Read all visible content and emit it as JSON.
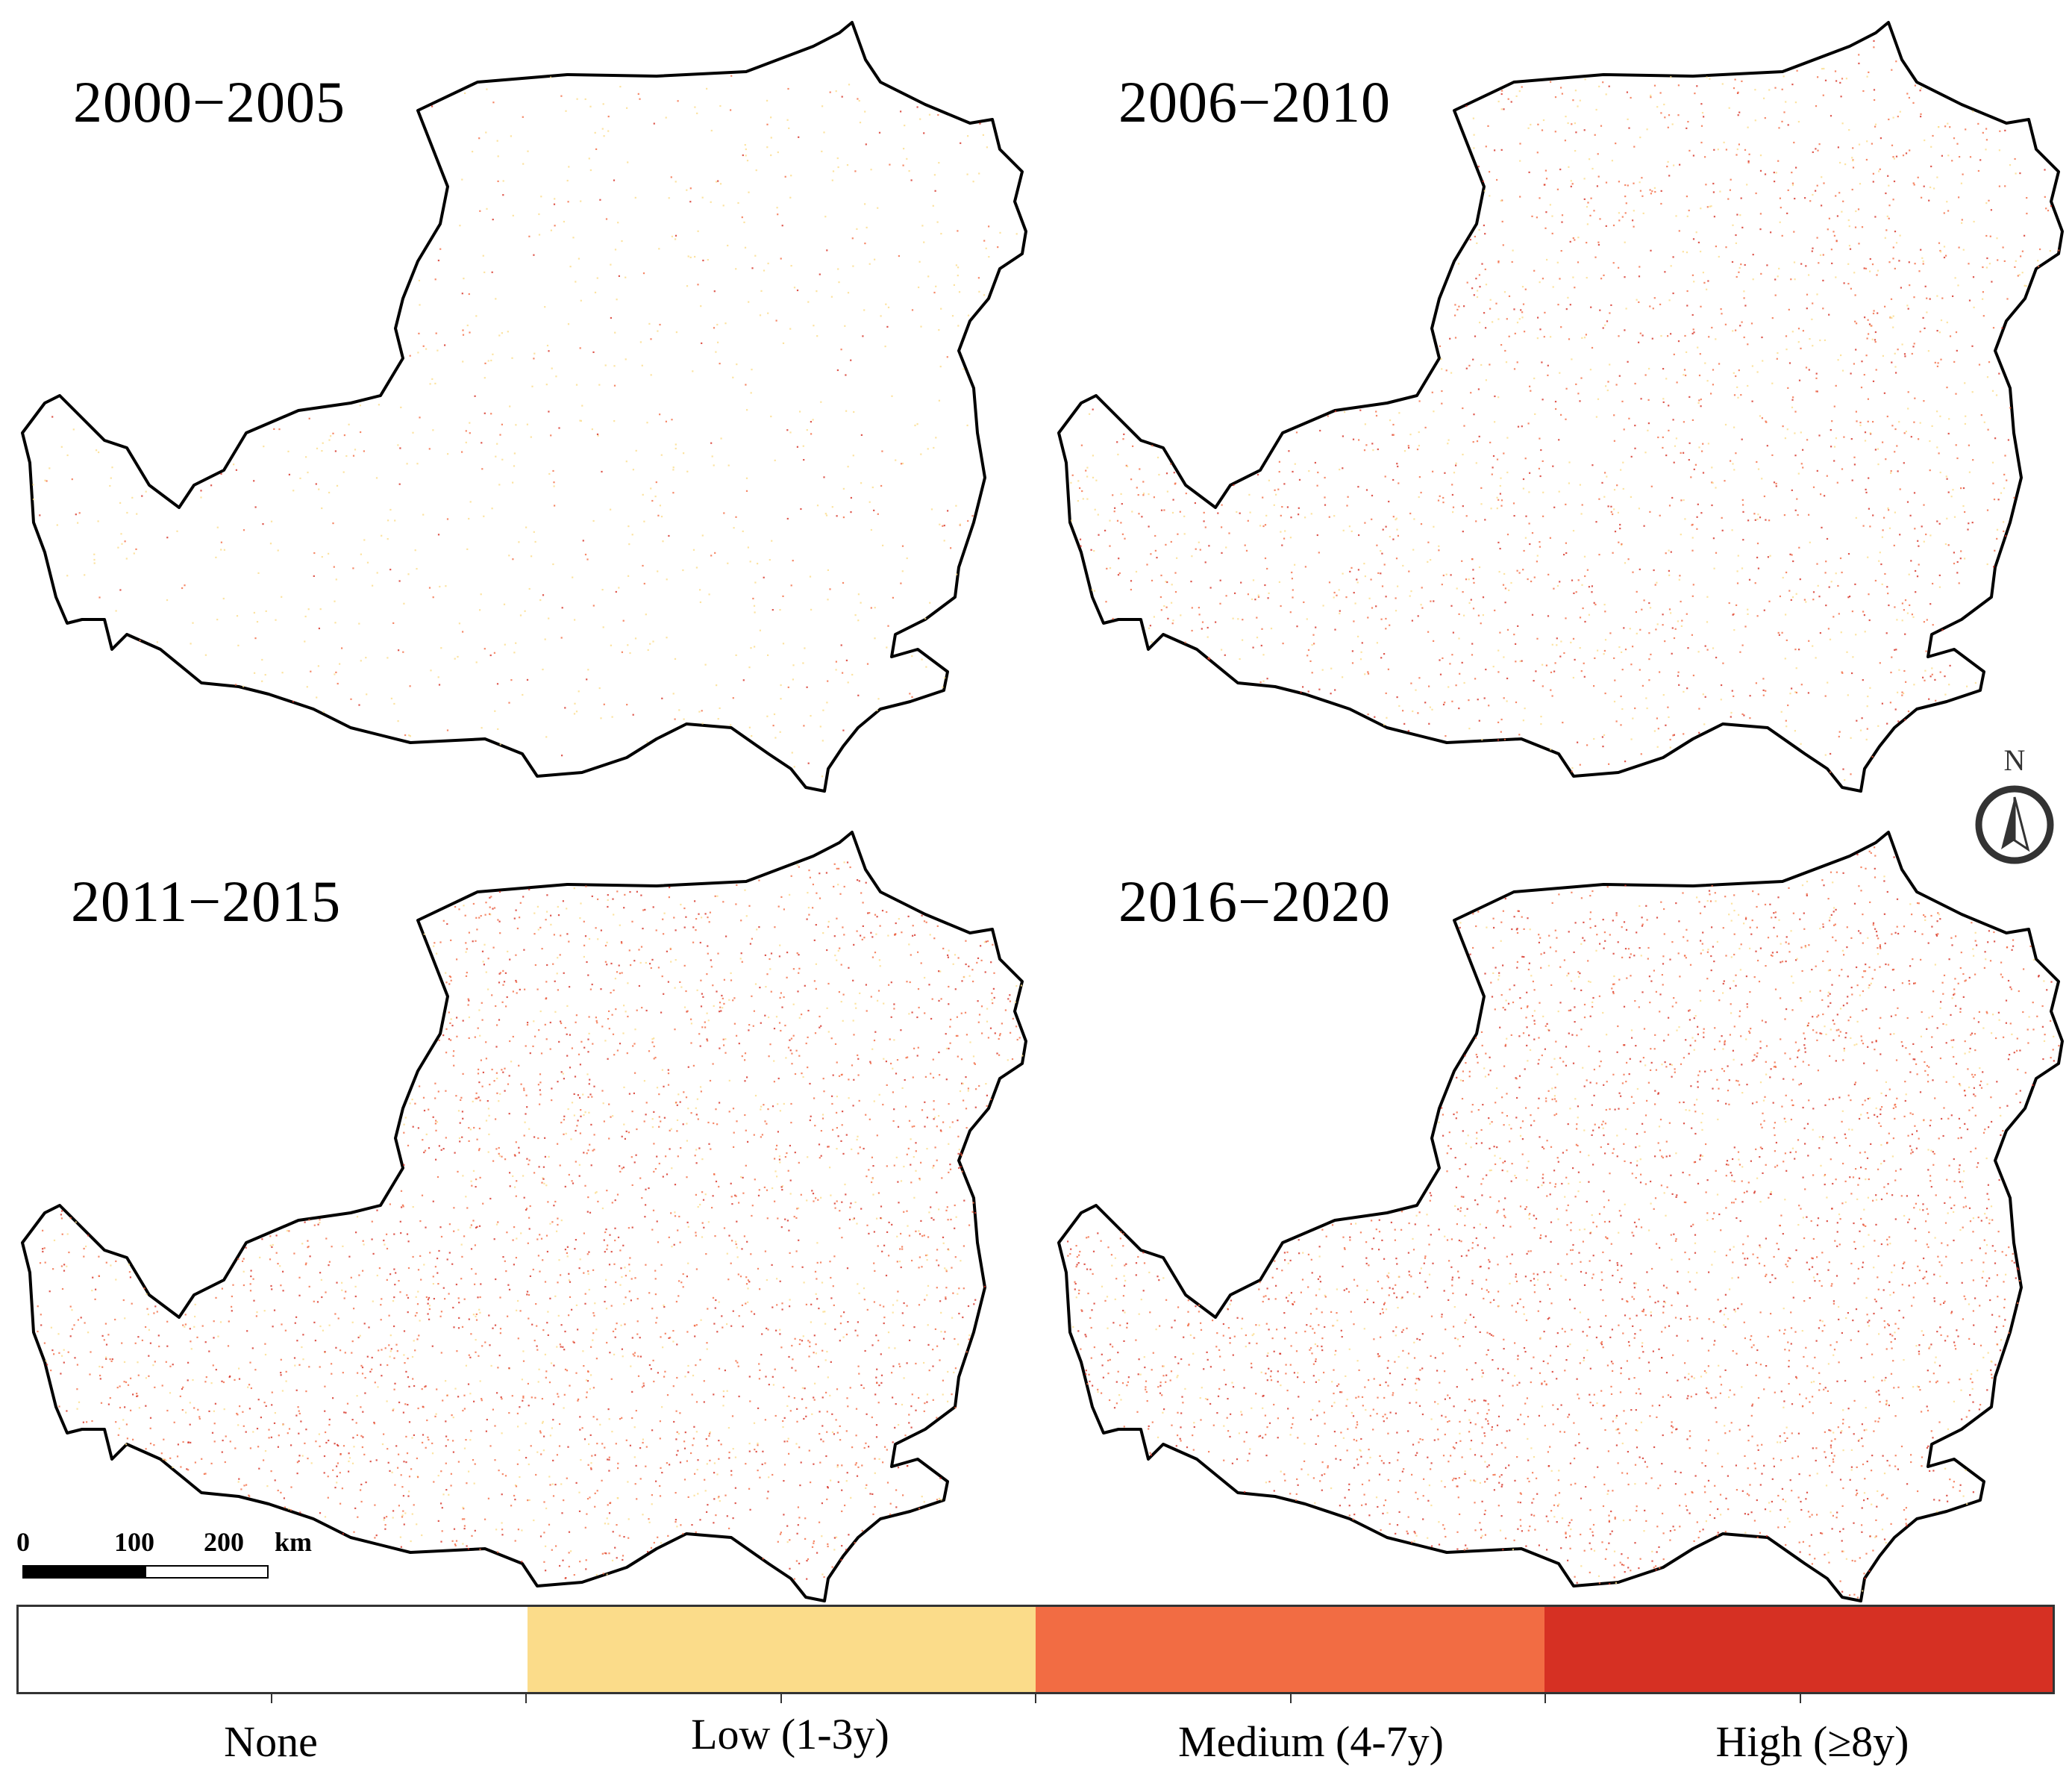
{
  "panels": [
    {
      "id": "p1",
      "title": "2000−2005"
    },
    {
      "id": "p2",
      "title": "2006−2010"
    },
    {
      "id": "p3",
      "title": "2011−2015"
    },
    {
      "id": "p4",
      "title": "2016−2020"
    }
  ],
  "compass": {
    "label": "N",
    "icon": "north-arrow-icon"
  },
  "scale_bar": {
    "ticks": [
      "0",
      "100",
      "200"
    ],
    "unit": "km"
  },
  "legend": {
    "classes": [
      {
        "label": "None",
        "color": "#ffffff"
      },
      {
        "label": "Low (1-3y)",
        "color": "#fbdc8a"
      },
      {
        "label": "Medium (4-7y)",
        "color": "#f26c43"
      },
      {
        "label": "High (≥8y)",
        "color": "#d63023"
      }
    ]
  }
}
